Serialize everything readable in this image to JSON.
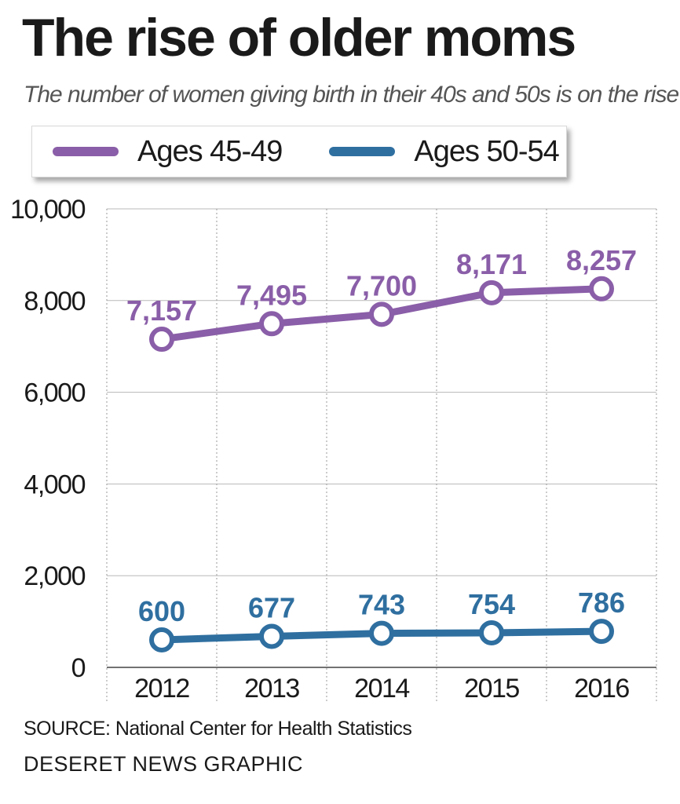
{
  "chart_data": {
    "type": "line",
    "title": "The rise of older moms",
    "subtitle": "The number of women giving birth in their 40s and 50s is on the rise",
    "categories": [
      "2012",
      "2013",
      "2014",
      "2015",
      "2016"
    ],
    "series": [
      {
        "name": "Ages 45-49",
        "color": "#8a5ea8",
        "values": [
          7157,
          7495,
          7700,
          8171,
          8257
        ],
        "labels": [
          "7,157",
          "7,495",
          "7,700",
          "8,171",
          "8,257"
        ]
      },
      {
        "name": "Ages 50-54",
        "color": "#2f6fa0",
        "values": [
          600,
          677,
          743,
          754,
          786
        ],
        "labels": [
          "600",
          "677",
          "743",
          "754",
          "786"
        ]
      }
    ],
    "ylim": [
      0,
      10000
    ],
    "yticks": [
      0,
      2000,
      4000,
      6000,
      8000,
      10000
    ],
    "ytick_labels": [
      "0",
      "2,000",
      "4,000",
      "6,000",
      "8,000",
      "10,000"
    ],
    "xlabel": "",
    "ylabel": "",
    "legend_position": "top",
    "grid": true
  },
  "footer": {
    "source": "SOURCE: National Center for Health Statistics",
    "credit": "DESERET NEWS GRAPHIC"
  }
}
